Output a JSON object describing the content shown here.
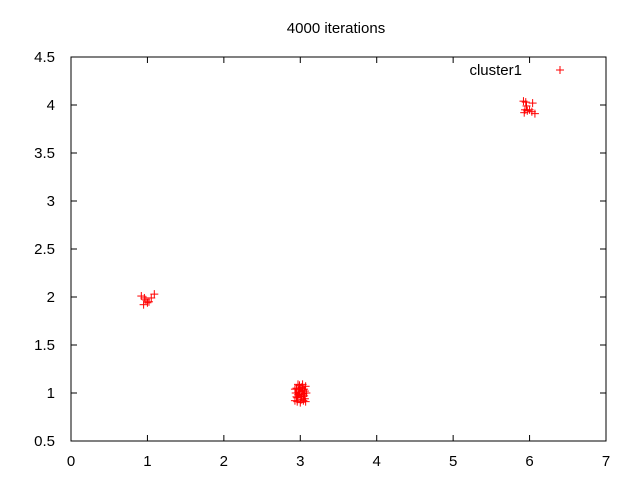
{
  "chart_data": {
    "type": "scatter",
    "title": "4000 iterations",
    "xlabel": "",
    "ylabel": "",
    "xlim": [
      0,
      7
    ],
    "ylim": [
      0.5,
      4.5
    ],
    "x_ticks": [
      "0",
      "1",
      "2",
      "3",
      "4",
      "5",
      "6",
      "7"
    ],
    "y_ticks": [
      "0.5",
      "1",
      "1.5",
      "2",
      "2.5",
      "3",
      "3.5",
      "4",
      "4.5"
    ],
    "grid": false,
    "legend": {
      "position": "top-right",
      "entries": [
        "cluster1"
      ]
    },
    "marker_color": "#ff0000",
    "series": [
      {
        "name": "cluster1",
        "points": [
          [
            0.92,
            2.01
          ],
          [
            0.95,
            1.92
          ],
          [
            0.98,
            1.97
          ],
          [
            1.02,
            1.95
          ],
          [
            1.05,
            1.99
          ],
          [
            1.09,
            2.03
          ],
          [
            1.0,
            1.94
          ],
          [
            0.96,
            1.99
          ],
          [
            2.93,
            0.92
          ],
          [
            2.95,
            1.05
          ],
          [
            2.97,
            0.98
          ],
          [
            2.99,
            1.08
          ],
          [
            3.01,
            0.93
          ],
          [
            3.03,
            1.02
          ],
          [
            3.05,
            0.97
          ],
          [
            3.07,
            1.07
          ],
          [
            2.94,
            1.0
          ],
          [
            2.96,
            0.95
          ],
          [
            2.98,
            1.03
          ],
          [
            3.0,
            0.9
          ],
          [
            3.02,
            1.06
          ],
          [
            3.04,
            0.99
          ],
          [
            3.06,
            0.94
          ],
          [
            2.95,
            0.96
          ],
          [
            2.97,
            1.09
          ],
          [
            2.99,
            1.01
          ],
          [
            3.01,
            0.97
          ],
          [
            3.03,
            1.09
          ],
          [
            3.05,
            1.04
          ],
          [
            3.07,
            0.91
          ],
          [
            2.93,
            1.04
          ],
          [
            3.08,
            1.0
          ],
          [
            2.96,
            0.91
          ],
          [
            3.04,
            0.92
          ],
          [
            3.0,
            1.05
          ],
          [
            2.98,
            0.99
          ],
          [
            3.02,
            0.96
          ],
          [
            3.06,
            1.02
          ],
          [
            5.92,
            4.04
          ],
          [
            5.94,
            3.95
          ],
          [
            5.96,
            3.99
          ],
          [
            5.97,
            3.94
          ],
          [
            6.0,
            3.95
          ],
          [
            6.03,
            3.93
          ],
          [
            6.04,
            4.02
          ],
          [
            6.07,
            3.91
          ],
          [
            5.93,
            3.92
          ],
          [
            5.95,
            4.03
          ]
        ]
      }
    ]
  }
}
